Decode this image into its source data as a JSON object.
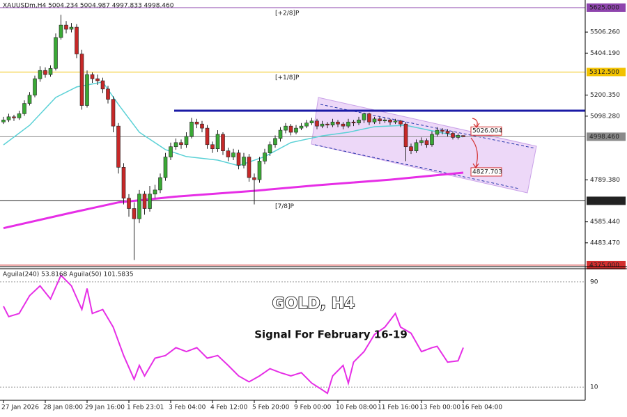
{
  "chart_data": {
    "type": "candlestick",
    "header": "XAUUSDm,H4  5004.234 5004.987 4997.833 4998.460",
    "title": "GOLD, H4",
    "subtitle": "Signal For February 16-19",
    "up_color": "#3aa935",
    "down_color": "#c62828",
    "ylim": [
      4368,
      5662
    ],
    "yticks": [
      {
        "value": 5506.26,
        "label": "5506.260"
      },
      {
        "value": 5404.19,
        "label": "5404.190"
      },
      {
        "value": 5200.35,
        "label": "5200.350"
      },
      {
        "value": 5098.28,
        "label": "5098.280"
      },
      {
        "value": 4789.38,
        "label": "4789.380"
      },
      {
        "value": 4585.44,
        "label": "4585.440"
      },
      {
        "value": 4483.47,
        "label": "4483.470"
      }
    ],
    "levels": [
      {
        "value": 5625,
        "label": "5625.000",
        "text": "[+2/8]P",
        "color": "#8e44ad"
      },
      {
        "value": 5312.5,
        "label": "5312.500",
        "text": "[+1/8]P",
        "color": "#f2c200"
      },
      {
        "value": 4998.46,
        "label": "4998.460",
        "color": "#8a8a8a"
      },
      {
        "value": 4687.5,
        "label": "4687.500",
        "text": "[7/8]P",
        "color": "#222222"
      },
      {
        "value": 4375,
        "label": "4375.000",
        "color": "#d32f2f"
      }
    ],
    "resistance": {
      "value": 5125,
      "color": "#1a1aa6"
    },
    "annotations": [
      {
        "value": 5026.004,
        "label": "5026.004"
      },
      {
        "value": 4827.703,
        "label": "4827.703"
      }
    ],
    "categories": [
      "27 Jan 2026",
      null,
      null,
      null,
      null,
      null,
      null,
      null,
      "28 Jan 08:00",
      null,
      null,
      null,
      null,
      null,
      null,
      null,
      "29 Jan 16:00",
      null,
      null,
      null,
      null,
      null,
      null,
      null,
      "1 Feb 23:01",
      null,
      null,
      null,
      null,
      null,
      null,
      null,
      "3 Feb 04:00",
      null,
      null,
      null,
      null,
      null,
      null,
      null,
      "4 Feb 12:00",
      null,
      null,
      null,
      null,
      null,
      null,
      null,
      "5 Feb 20:00",
      null,
      null,
      null,
      null,
      null,
      null,
      null,
      "9 Feb 00:00",
      null,
      null,
      null,
      null,
      null,
      null,
      null,
      "10 Feb 08:00",
      null,
      null,
      null,
      null,
      null,
      null,
      null,
      "11 Feb 16:00",
      null,
      null,
      null,
      null,
      null,
      null,
      null,
      "13 Feb 00:00",
      null,
      null,
      null,
      null,
      null,
      null,
      null,
      "16 Feb 04:00"
    ],
    "candles": [
      [
        5070,
        5095,
        5060,
        5080
      ],
      [
        5080,
        5110,
        5070,
        5095
      ],
      [
        5095,
        5105,
        5075,
        5090
      ],
      [
        5090,
        5125,
        5080,
        5110
      ],
      [
        5110,
        5175,
        5100,
        5160
      ],
      [
        5160,
        5215,
        5150,
        5200
      ],
      [
        5200,
        5295,
        5190,
        5280
      ],
      [
        5280,
        5340,
        5265,
        5320
      ],
      [
        5320,
        5335,
        5285,
        5300
      ],
      [
        5300,
        5345,
        5290,
        5330
      ],
      [
        5330,
        5500,
        5320,
        5480
      ],
      [
        5480,
        5590,
        5470,
        5540
      ],
      [
        5540,
        5560,
        5500,
        5520
      ],
      [
        5520,
        5550,
        5505,
        5530
      ],
      [
        5530,
        5545,
        5380,
        5400
      ],
      [
        5400,
        5420,
        5130,
        5150
      ],
      [
        5150,
        5320,
        5140,
        5300
      ],
      [
        5300,
        5310,
        5260,
        5280
      ],
      [
        5280,
        5300,
        5250,
        5270
      ],
      [
        5270,
        5285,
        5210,
        5230
      ],
      [
        5230,
        5245,
        5160,
        5180
      ],
      [
        5180,
        5195,
        5020,
        5050
      ],
      [
        5050,
        5065,
        4820,
        4850
      ],
      [
        4850,
        4870,
        4670,
        4700
      ],
      [
        4700,
        4720,
        4610,
        4650
      ],
      [
        4650,
        4680,
        4400,
        4600
      ],
      [
        4600,
        4740,
        4580,
        4720
      ],
      [
        4720,
        4735,
        4620,
        4650
      ],
      [
        4650,
        4760,
        4635,
        4720
      ],
      [
        4720,
        4765,
        4700,
        4740
      ],
      [
        4740,
        4820,
        4725,
        4800
      ],
      [
        4800,
        4920,
        4785,
        4900
      ],
      [
        4900,
        4970,
        4885,
        4950
      ],
      [
        4950,
        4990,
        4935,
        4970
      ],
      [
        4970,
        4985,
        4940,
        4960
      ],
      [
        4960,
        5020,
        4945,
        5000
      ],
      [
        5000,
        5090,
        4990,
        5070
      ],
      [
        5070,
        5085,
        5040,
        5060
      ],
      [
        5060,
        5075,
        5020,
        5040
      ],
      [
        5040,
        5055,
        4940,
        4960
      ],
      [
        4960,
        4975,
        4920,
        4940
      ],
      [
        4940,
        5030,
        4925,
        5010
      ],
      [
        5010,
        5020,
        4910,
        4930
      ],
      [
        4930,
        4945,
        4880,
        4900
      ],
      [
        4900,
        4940,
        4885,
        4920
      ],
      [
        4920,
        4935,
        4840,
        4860
      ],
      [
        4860,
        4920,
        4845,
        4900
      ],
      [
        4900,
        4915,
        4780,
        4800
      ],
      [
        4800,
        4820,
        4670,
        4790
      ],
      [
        4790,
        4900,
        4775,
        4880
      ],
      [
        4880,
        4940,
        4865,
        4920
      ],
      [
        4920,
        4975,
        4905,
        4960
      ],
      [
        4960,
        5005,
        4945,
        4990
      ],
      [
        4990,
        5045,
        4975,
        5030
      ],
      [
        5030,
        5065,
        5015,
        5050
      ],
      [
        5050,
        5060,
        5005,
        5020
      ],
      [
        5020,
        5055,
        5010,
        5040
      ],
      [
        5040,
        5065,
        5030,
        5050
      ],
      [
        5050,
        5080,
        5040,
        5065
      ],
      [
        5065,
        5090,
        5055,
        5075
      ],
      [
        5075,
        5085,
        5035,
        5050
      ],
      [
        5050,
        5075,
        5040,
        5060
      ],
      [
        5060,
        5070,
        5040,
        5055
      ],
      [
        5055,
        5085,
        5045,
        5070
      ],
      [
        5070,
        5080,
        5045,
        5060
      ],
      [
        5060,
        5070,
        5035,
        5050
      ],
      [
        5050,
        5085,
        5040,
        5070
      ],
      [
        5070,
        5080,
        5050,
        5065
      ],
      [
        5065,
        5095,
        5055,
        5080
      ],
      [
        5080,
        5115,
        5065,
        5110
      ],
      [
        5110,
        5115,
        5055,
        5070
      ],
      [
        5070,
        5095,
        5060,
        5085
      ],
      [
        5085,
        5095,
        5060,
        5075
      ],
      [
        5075,
        5090,
        5065,
        5080
      ],
      [
        5080,
        5085,
        5055,
        5070
      ],
      [
        5070,
        5085,
        5060,
        5075
      ],
      [
        5075,
        5080,
        5045,
        5060
      ],
      [
        5060,
        5070,
        4880,
        4950
      ],
      [
        4950,
        4965,
        4915,
        4930
      ],
      [
        4930,
        4985,
        4920,
        4970
      ],
      [
        4970,
        4995,
        4955,
        4980
      ],
      [
        4980,
        4990,
        4945,
        4960
      ],
      [
        4960,
        5025,
        4950,
        5010
      ],
      [
        5010,
        5045,
        5000,
        5030
      ],
      [
        5030,
        5040,
        5010,
        5025
      ],
      [
        5025,
        5035,
        5000,
        5015
      ],
      [
        5015,
        5025,
        4985,
        4995
      ],
      [
        4995,
        5015,
        4985,
        5005
      ],
      [
        5004.234,
        5004.987,
        4997.833,
        4998.46
      ]
    ],
    "series": [
      {
        "color": "#5ad1d6",
        "x": [
          0,
          5,
          10,
          14,
          19,
          22,
          26,
          31,
          35,
          41,
          45,
          50,
          55,
          61,
          66,
          71,
          77,
          82,
          88
        ],
        "values": [
          4959,
          5054,
          5189,
          5240,
          5264,
          5155,
          5020,
          4936,
          4902,
          4885,
          4858,
          4902,
          4970,
          5003,
          5020,
          5047,
          5054,
          5027,
          4997
        ]
      },
      {
        "color": "#e62ee6",
        "x": [
          0,
          13,
          22,
          33,
          48,
          60,
          74,
          88
        ],
        "values": [
          4555,
          4630,
          4680,
          4708,
          4736,
          4763,
          4790,
          4824
        ]
      }
    ],
    "indicator": {
      "label": "Aguila(240) 53.8168  Aguila(50) 101.5835",
      "ylim": [
        0,
        100
      ],
      "yticks": [
        90,
        10
      ],
      "color": "#e62ee6",
      "x": [
        0,
        1,
        3,
        5,
        7,
        9,
        11,
        13,
        15,
        16,
        17,
        19,
        21,
        23,
        25,
        26,
        27,
        29,
        31,
        33,
        35,
        37,
        39,
        41,
        43,
        45,
        47,
        49,
        51,
        53,
        55,
        57,
        59,
        61,
        62,
        63,
        65,
        66,
        67,
        69,
        71,
        73,
        75,
        76,
        78,
        80,
        82,
        83,
        85,
        87,
        88
      ],
      "values": [
        71.5,
        63.6,
        66,
        79.5,
        87,
        77,
        95,
        87,
        69,
        85,
        66,
        69,
        55.6,
        34,
        16,
        26.5,
        18.5,
        32,
        34,
        40,
        37,
        40,
        32,
        34,
        26.5,
        18.5,
        14,
        18.5,
        24,
        21,
        18.5,
        21,
        13,
        8,
        5.3,
        18.5,
        26.5,
        13,
        29,
        37,
        50,
        55.6,
        66,
        55.6,
        51,
        37,
        40,
        41,
        29,
        30,
        40
      ]
    }
  }
}
